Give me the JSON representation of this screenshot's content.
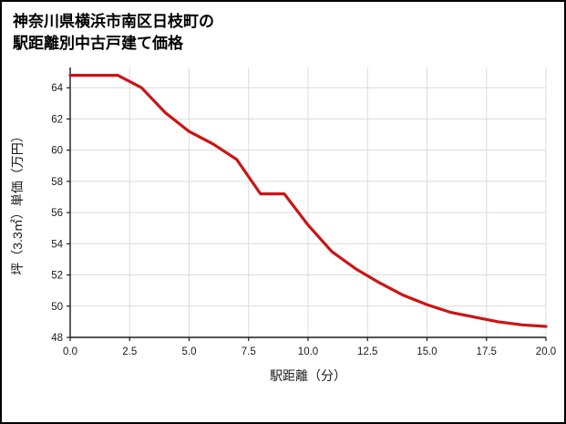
{
  "header": {
    "line1": "神奈川県横浜市南区日枝町の",
    "line2": "駅距離別中古戸建て価格"
  },
  "chart_data": {
    "type": "line",
    "title": "神奈川県横浜市南区日枝町の駅距離別中古戸建て価格",
    "xlabel": "駅距離（分）",
    "ylabel": "坪（3.3㎡）単価（万円）",
    "x": [
      0,
      1,
      2,
      3,
      4,
      5,
      6,
      7,
      8,
      9,
      10,
      11,
      12,
      13,
      14,
      15,
      16,
      17,
      18,
      19,
      20
    ],
    "values": [
      64.8,
      64.8,
      64.8,
      64.0,
      62.4,
      61.2,
      60.4,
      59.4,
      57.2,
      57.2,
      55.2,
      53.5,
      52.4,
      51.5,
      50.7,
      50.1,
      49.6,
      49.3,
      49.0,
      48.8,
      48.7
    ],
    "xlim": [
      0,
      20
    ],
    "ylim": [
      48,
      65.3
    ],
    "x_tick_values": [
      0,
      2.5,
      5,
      7.5,
      10,
      12.5,
      15,
      17.5,
      20
    ],
    "x_tick_labels": [
      "0.0",
      "2.5",
      "5.0",
      "7.5",
      "10.0",
      "12.5",
      "15.0",
      "17.5",
      "20.0"
    ],
    "y_tick_values": [
      48,
      50,
      52,
      54,
      56,
      58,
      60,
      62,
      64
    ],
    "y_tick_labels": [
      "48",
      "50",
      "52",
      "54",
      "56",
      "58",
      "60",
      "62",
      "64"
    ],
    "line_color": "#cc1414",
    "grid": true,
    "grid_color": "#dcdcdc",
    "axis_color": "#1a1a1a",
    "legend": "none"
  }
}
